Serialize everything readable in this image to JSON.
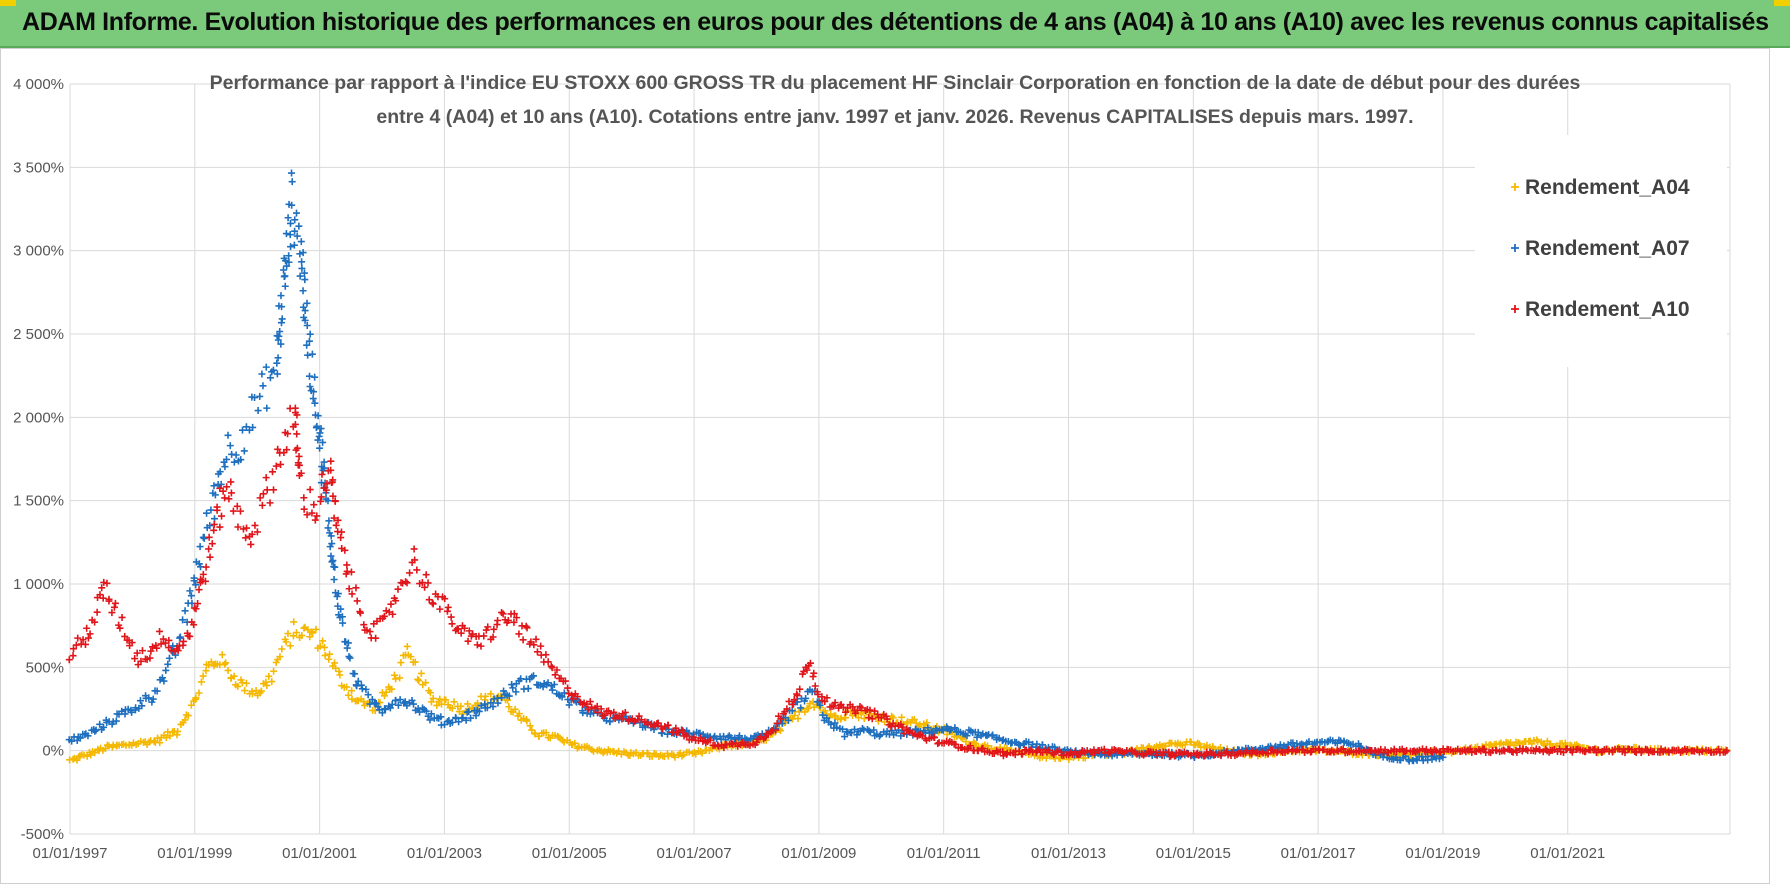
{
  "banner": {
    "text": "ADAM Informe. Evolution historique des performances en euros pour des détentions de 4 ans (A04) à 10 ans (A10) avec les revenus connus capitalisés",
    "bg_color": "#7bc97b",
    "corner_color": "#f2d000"
  },
  "chart_data": {
    "type": "scatter",
    "title_lines": [
      "Performance par rapport à l'indice EU STOXX 600 GROSS TR  du placement HF Sinclair Corporation en fonction de la date de début pour des durées",
      "entre 4 (A04) et 10 ans (A10). Cotations entre janv. 1997 et janv. 2026. Revenus CAPITALISES depuis mars. 1997."
    ],
    "xlabel": "",
    "ylabel": "",
    "x_range": [
      1997.0,
      2023.6
    ],
    "x_ticks": [
      {
        "year": 1997,
        "label": "01/01/1997"
      },
      {
        "year": 1999,
        "label": "01/01/1999"
      },
      {
        "year": 2001,
        "label": "01/01/2001"
      },
      {
        "year": 2003,
        "label": "01/01/2003"
      },
      {
        "year": 2005,
        "label": "01/01/2005"
      },
      {
        "year": 2007,
        "label": "01/01/2007"
      },
      {
        "year": 2009,
        "label": "01/01/2009"
      },
      {
        "year": 2011,
        "label": "01/01/2011"
      },
      {
        "year": 2013,
        "label": "01/01/2013"
      },
      {
        "year": 2015,
        "label": "01/01/2015"
      },
      {
        "year": 2017,
        "label": "01/01/2017"
      },
      {
        "year": 2019,
        "label": "01/01/2019"
      },
      {
        "year": 2021,
        "label": "01/01/2021"
      }
    ],
    "y_range": [
      -500,
      4000
    ],
    "y_ticks": [
      {
        "value": 4000,
        "label": "4 000%"
      },
      {
        "value": 3500,
        "label": "3 500%"
      },
      {
        "value": 3000,
        "label": "3 000%"
      },
      {
        "value": 2500,
        "label": "2 500%"
      },
      {
        "value": 2000,
        "label": "2 000%"
      },
      {
        "value": 1500,
        "label": "1 500%"
      },
      {
        "value": 1000,
        "label": "1 000%"
      },
      {
        "value": 500,
        "label": "500%"
      },
      {
        "value": 0,
        "label": "0%"
      },
      {
        "value": -500,
        "label": "-500%"
      }
    ],
    "grid": true,
    "legend_position": "top-right",
    "marker": "+",
    "series": [
      {
        "name": "Rendement_A04",
        "color": "#f5b800",
        "points": [
          [
            1997.0,
            -60
          ],
          [
            1997.3,
            -20
          ],
          [
            1997.6,
            20
          ],
          [
            1998.0,
            40
          ],
          [
            1998.4,
            60
          ],
          [
            1998.7,
            120
          ],
          [
            1999.0,
            300
          ],
          [
            1999.2,
            500
          ],
          [
            1999.4,
            550
          ],
          [
            1999.6,
            450
          ],
          [
            1999.8,
            380
          ],
          [
            2000.0,
            350
          ],
          [
            2000.2,
            420
          ],
          [
            2000.4,
            600
          ],
          [
            2000.6,
            720
          ],
          [
            2000.9,
            700
          ],
          [
            2001.1,
            600
          ],
          [
            2001.3,
            450
          ],
          [
            2001.6,
            300
          ],
          [
            2001.9,
            260
          ],
          [
            2002.2,
            420
          ],
          [
            2002.4,
            580
          ],
          [
            2002.6,
            450
          ],
          [
            2002.8,
            300
          ],
          [
            2003.0,
            300
          ],
          [
            2003.3,
            250
          ],
          [
            2003.6,
            300
          ],
          [
            2003.9,
            330
          ],
          [
            2004.2,
            200
          ],
          [
            2004.5,
            100
          ],
          [
            2004.8,
            80
          ],
          [
            2005.0,
            40
          ],
          [
            2005.5,
            0
          ],
          [
            2006.0,
            -20
          ],
          [
            2006.5,
            -30
          ],
          [
            2007.0,
            -20
          ],
          [
            2007.5,
            30
          ],
          [
            2008.0,
            50
          ],
          [
            2008.3,
            100
          ],
          [
            2008.6,
            200
          ],
          [
            2008.9,
            300
          ],
          [
            2009.2,
            200
          ],
          [
            2009.5,
            230
          ],
          [
            2010.0,
            200
          ],
          [
            2010.5,
            170
          ],
          [
            2011.0,
            120
          ],
          [
            2011.5,
            40
          ],
          [
            2012.0,
            0
          ],
          [
            2012.5,
            -30
          ],
          [
            2013.0,
            -40
          ],
          [
            2013.5,
            -20
          ],
          [
            2014.0,
            -10
          ],
          [
            2014.5,
            40
          ],
          [
            2015.0,
            40
          ],
          [
            2015.5,
            0
          ],
          [
            2016.0,
            -20
          ],
          [
            2016.5,
            0
          ],
          [
            2017.0,
            0
          ],
          [
            2017.5,
            -10
          ],
          [
            2018.0,
            -20
          ],
          [
            2018.5,
            -20
          ],
          [
            2019.0,
            -10
          ],
          [
            2019.5,
            10
          ],
          [
            2020.0,
            40
          ],
          [
            2020.5,
            50
          ],
          [
            2021.0,
            30
          ],
          [
            2021.5,
            0
          ],
          [
            2022.0,
            10
          ],
          [
            2022.5,
            0
          ],
          [
            2023.0,
            0
          ],
          [
            2023.55,
            0
          ]
        ]
      },
      {
        "name": "Rendement_A07",
        "color": "#1f6fbf",
        "points": [
          [
            1997.0,
            60
          ],
          [
            1997.3,
            100
          ],
          [
            1997.6,
            170
          ],
          [
            1998.0,
            250
          ],
          [
            1998.3,
            330
          ],
          [
            1998.6,
            500
          ],
          [
            1998.9,
            850
          ],
          [
            1999.1,
            1200
          ],
          [
            1999.3,
            1500
          ],
          [
            1999.5,
            1800
          ],
          [
            1999.7,
            1850
          ],
          [
            1999.9,
            2000
          ],
          [
            2000.1,
            2150
          ],
          [
            2000.3,
            2300
          ],
          [
            2000.45,
            2900
          ],
          [
            2000.55,
            3300
          ],
          [
            2000.7,
            3000
          ],
          [
            2000.8,
            2500
          ],
          [
            2000.9,
            2200
          ],
          [
            2001.0,
            1900
          ],
          [
            2001.1,
            1500
          ],
          [
            2001.2,
            1200
          ],
          [
            2001.3,
            900
          ],
          [
            2001.45,
            600
          ],
          [
            2001.6,
            400
          ],
          [
            2001.8,
            300
          ],
          [
            2002.0,
            250
          ],
          [
            2002.2,
            300
          ],
          [
            2002.4,
            300
          ],
          [
            2002.6,
            250
          ],
          [
            2002.8,
            200
          ],
          [
            2003.0,
            170
          ],
          [
            2003.3,
            200
          ],
          [
            2003.6,
            250
          ],
          [
            2003.9,
            320
          ],
          [
            2004.2,
            400
          ],
          [
            2004.5,
            420
          ],
          [
            2004.8,
            360
          ],
          [
            2005.0,
            300
          ],
          [
            2005.5,
            200
          ],
          [
            2006.0,
            180
          ],
          [
            2006.5,
            120
          ],
          [
            2007.0,
            100
          ],
          [
            2007.5,
            80
          ],
          [
            2008.0,
            70
          ],
          [
            2008.3,
            120
          ],
          [
            2008.6,
            250
          ],
          [
            2008.9,
            350
          ],
          [
            2009.1,
            200
          ],
          [
            2009.4,
            100
          ],
          [
            2009.7,
            120
          ],
          [
            2010.0,
            100
          ],
          [
            2010.5,
            110
          ],
          [
            2011.0,
            130
          ],
          [
            2011.5,
            100
          ],
          [
            2012.0,
            60
          ],
          [
            2012.5,
            30
          ],
          [
            2013.0,
            -10
          ],
          [
            2013.5,
            -20
          ],
          [
            2014.0,
            -20
          ],
          [
            2014.5,
            -20
          ],
          [
            2015.0,
            -30
          ],
          [
            2015.5,
            -10
          ],
          [
            2016.0,
            10
          ],
          [
            2016.5,
            30
          ],
          [
            2017.0,
            50
          ],
          [
            2017.5,
            50
          ],
          [
            2018.0,
            -30
          ],
          [
            2018.5,
            -50
          ],
          [
            2019.0,
            -40
          ]
        ]
      },
      {
        "name": "Rendement_A10",
        "color": "#e0161b",
        "points": [
          [
            1997.0,
            580
          ],
          [
            1997.2,
            650
          ],
          [
            1997.4,
            800
          ],
          [
            1997.55,
            980
          ],
          [
            1997.7,
            850
          ],
          [
            1997.9,
            700
          ],
          [
            1998.1,
            550
          ],
          [
            1998.3,
            600
          ],
          [
            1998.5,
            700
          ],
          [
            1998.7,
            600
          ],
          [
            1998.9,
            700
          ],
          [
            1999.1,
            1000
          ],
          [
            1999.3,
            1300
          ],
          [
            1999.5,
            1600
          ],
          [
            1999.7,
            1400
          ],
          [
            1999.9,
            1300
          ],
          [
            2000.1,
            1500
          ],
          [
            2000.3,
            1700
          ],
          [
            2000.5,
            1950
          ],
          [
            2000.6,
            2000
          ],
          [
            2000.7,
            1600
          ],
          [
            2000.8,
            1500
          ],
          [
            2000.9,
            1450
          ],
          [
            2001.0,
            1500
          ],
          [
            2001.15,
            1700
          ],
          [
            2001.3,
            1300
          ],
          [
            2001.5,
            1000
          ],
          [
            2001.7,
            800
          ],
          [
            2001.9,
            700
          ],
          [
            2002.1,
            800
          ],
          [
            2002.3,
            1000
          ],
          [
            2002.5,
            1150
          ],
          [
            2002.7,
            1000
          ],
          [
            2002.9,
            900
          ],
          [
            2003.1,
            800
          ],
          [
            2003.3,
            700
          ],
          [
            2003.5,
            650
          ],
          [
            2003.7,
            700
          ],
          [
            2003.9,
            780
          ],
          [
            2004.1,
            800
          ],
          [
            2004.3,
            700
          ],
          [
            2004.6,
            550
          ],
          [
            2004.9,
            400
          ],
          [
            2005.2,
            300
          ],
          [
            2005.5,
            230
          ],
          [
            2006.0,
            200
          ],
          [
            2006.5,
            150
          ],
          [
            2007.0,
            70
          ],
          [
            2007.5,
            30
          ],
          [
            2008.0,
            50
          ],
          [
            2008.3,
            150
          ],
          [
            2008.6,
            300
          ],
          [
            2008.85,
            550
          ],
          [
            2009.0,
            350
          ],
          [
            2009.3,
            250
          ],
          [
            2009.6,
            250
          ],
          [
            2010.0,
            200
          ],
          [
            2010.5,
            100
          ],
          [
            2011.0,
            50
          ],
          [
            2011.5,
            10
          ],
          [
            2012.0,
            -20
          ],
          [
            2012.5,
            0
          ],
          [
            2013.0,
            -20
          ],
          [
            2013.5,
            0
          ],
          [
            2014.0,
            -10
          ],
          [
            2014.5,
            -20
          ],
          [
            2015.0,
            -20
          ],
          [
            2015.5,
            -20
          ],
          [
            2016.0,
            -10
          ],
          [
            2016.5,
            0
          ],
          [
            2017.0,
            0
          ],
          [
            2017.5,
            0
          ],
          [
            2018.0,
            0
          ],
          [
            2018.5,
            0
          ],
          [
            2019.0,
            0
          ],
          [
            2019.5,
            0
          ],
          [
            2020.0,
            0
          ],
          [
            2020.5,
            0
          ],
          [
            2021.0,
            0
          ],
          [
            2021.5,
            0
          ],
          [
            2022.0,
            0
          ],
          [
            2022.5,
            0
          ],
          [
            2023.0,
            0
          ],
          [
            2023.55,
            0
          ]
        ]
      }
    ]
  }
}
